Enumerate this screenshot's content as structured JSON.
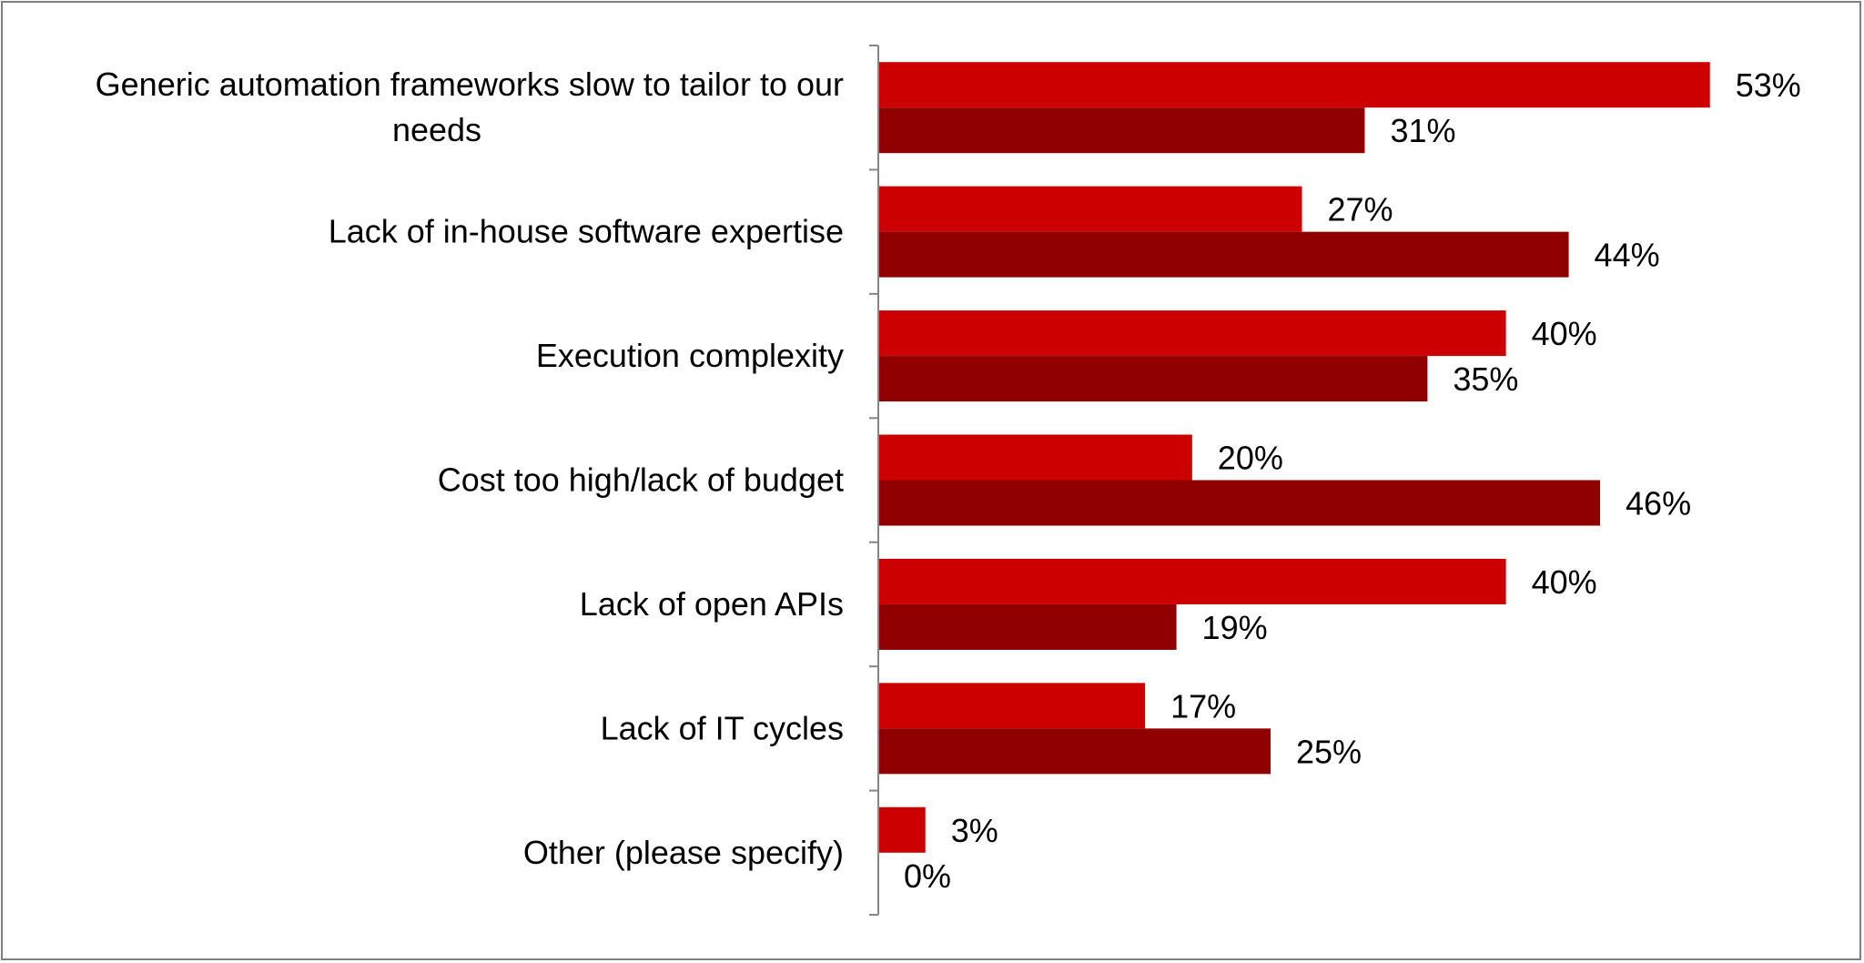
{
  "chart_data": {
    "type": "bar",
    "orientation": "horizontal",
    "categories": [
      [
        "Generic automation frameworks slow to tailor to our",
        "needs"
      ],
      [
        "Lack of in-house software expertise"
      ],
      [
        "Execution complexity"
      ],
      [
        "Cost too high/lack of budget"
      ],
      [
        "Lack of open APIs"
      ],
      [
        "Lack of IT cycles"
      ],
      [
        "Other (please specify)"
      ]
    ],
    "series": [
      {
        "values": [
          53,
          27,
          40,
          20,
          40,
          17,
          3
        ],
        "color": "#cc0000"
      },
      {
        "values": [
          31,
          44,
          35,
          46,
          19,
          25,
          0
        ],
        "color": "#900000"
      }
    ],
    "value_suffix": "%",
    "xlim": [
      0,
      60
    ],
    "axis_color": "#868686",
    "grid": false,
    "legend": false
  }
}
